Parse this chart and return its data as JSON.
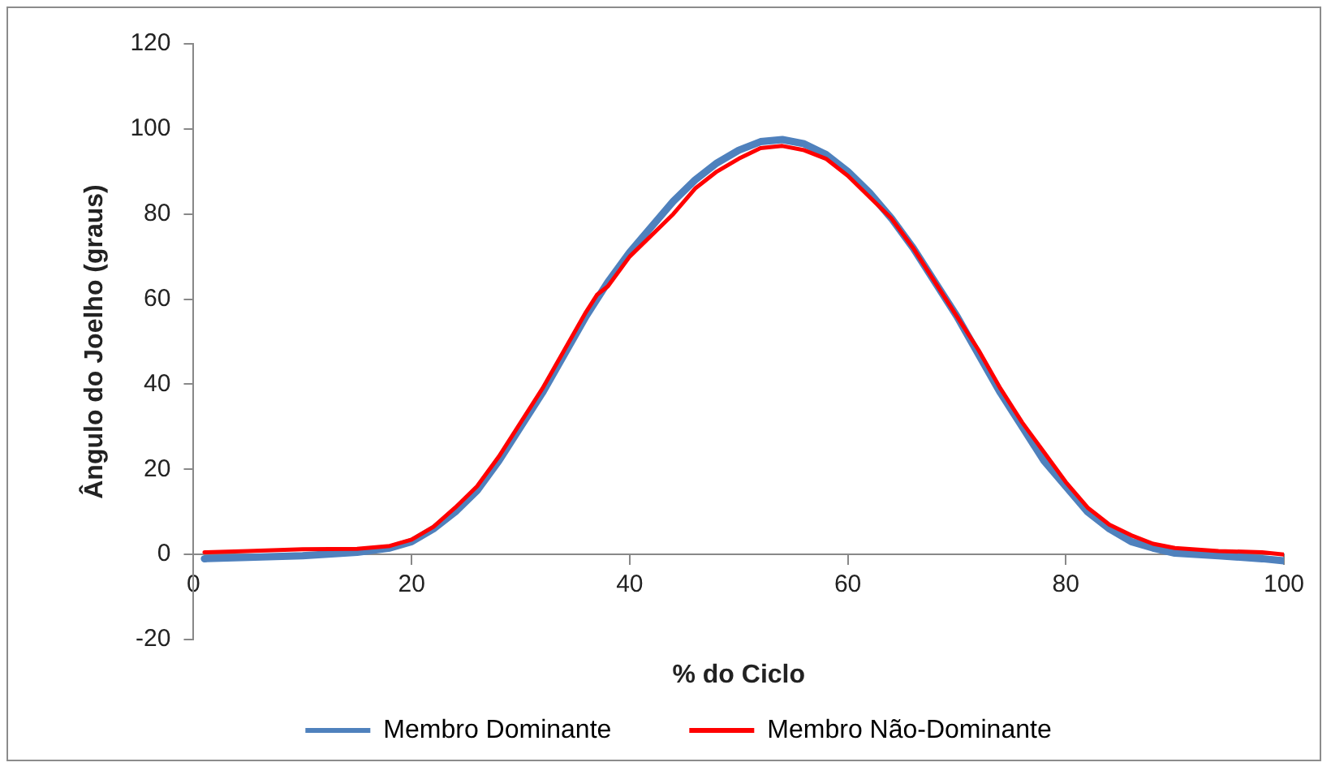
{
  "chart_data": {
    "type": "line",
    "xlabel": "% do Ciclo",
    "ylabel": "Ângulo do Joelho (graus)",
    "x": [
      1,
      5,
      10,
      15,
      18,
      20,
      22,
      24,
      26,
      28,
      30,
      32,
      34,
      36,
      37,
      38,
      40,
      42,
      44,
      46,
      48,
      50,
      52,
      54,
      56,
      58,
      60,
      62,
      64,
      66,
      68,
      70,
      72,
      74,
      76,
      78,
      80,
      82,
      84,
      86,
      88,
      90,
      94,
      98,
      100
    ],
    "series": [
      {
        "name": "Membro Dominante",
        "color": "#4f81bd",
        "values": [
          -1,
          -0.7,
          -0.3,
          0.5,
          1.5,
          3,
          6,
          10,
          15,
          22,
          30,
          38,
          47,
          56,
          60,
          64,
          71,
          77,
          83,
          88,
          92,
          95,
          97,
          97.5,
          96.5,
          94,
          90,
          85,
          79,
          72,
          64,
          56,
          47,
          38,
          30,
          22,
          16,
          10,
          6,
          3,
          1.5,
          0.3,
          -0.3,
          -1,
          -1.5
        ]
      },
      {
        "name": "Membro Não-Dominante",
        "color": "#ff0000",
        "values": [
          0.5,
          0.8,
          1.2,
          1.3,
          2,
          3.5,
          6.5,
          11,
          16,
          23,
          31,
          39,
          48,
          57,
          61,
          63,
          70,
          75,
          80,
          86,
          90,
          93,
          95.5,
          96,
          95,
          93,
          89,
          84,
          79,
          72,
          64,
          56,
          48,
          39,
          31,
          24,
          17,
          11,
          7,
          4.5,
          2.5,
          1.5,
          0.8,
          0.5,
          0
        ]
      }
    ],
    "xlim": [
      0,
      100
    ],
    "xticks": [
      0,
      20,
      40,
      60,
      80,
      100
    ],
    "ylim": [
      -20,
      120
    ],
    "yticks": [
      -20,
      0,
      20,
      40,
      60,
      80,
      100,
      120
    ],
    "grid": false,
    "legend": "bottom",
    "marker": "none",
    "line_style": "solid"
  }
}
